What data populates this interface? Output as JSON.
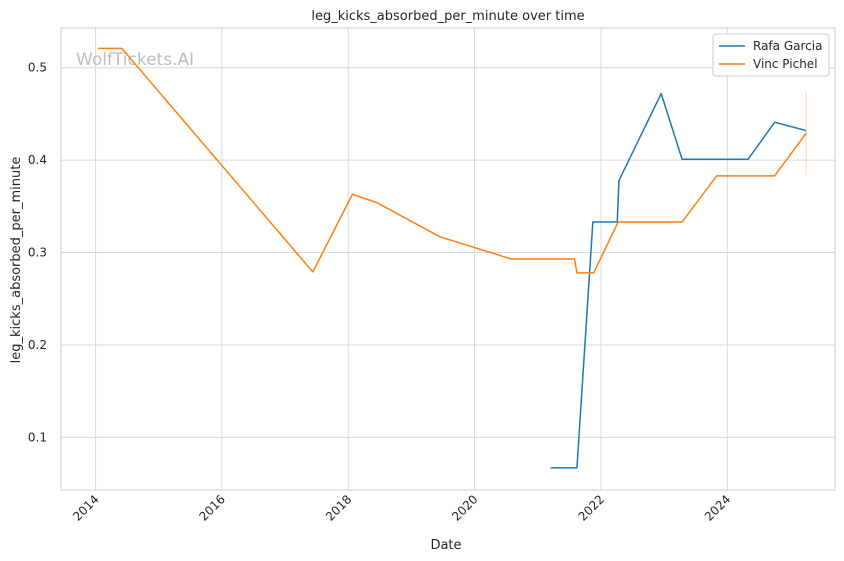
{
  "watermark": "WolfTickets.AI",
  "chart_data": {
    "type": "line",
    "title": "leg_kicks_absorbed_per_minute over time",
    "xlabel": "Date",
    "ylabel": "leg_kicks_absorbed_per_minute",
    "xlim": [
      "2013-06-15",
      "2025-09-15"
    ],
    "ylim": [
      0.043,
      0.543
    ],
    "x_ticks": [
      "2014",
      "2016",
      "2018",
      "2020",
      "2022",
      "2024"
    ],
    "y_ticks": [
      0.1,
      0.2,
      0.3,
      0.4,
      0.5
    ],
    "y_tick_labels": [
      "0.1",
      "0.2",
      "0.3",
      "0.4",
      "0.5"
    ],
    "grid": true,
    "legend_position": "top-right",
    "series": [
      {
        "name": "Rafa Garcia",
        "color": "#1f77b4",
        "points": [
          [
            "2021-03-15",
            0.067
          ],
          [
            "2021-08-15",
            0.067
          ],
          [
            "2021-11-15",
            0.333
          ],
          [
            "2022-04-05",
            0.333
          ],
          [
            "2022-04-15",
            0.378
          ],
          [
            "2022-12-15",
            0.472
          ],
          [
            "2023-04-15",
            0.401
          ],
          [
            "2024-05-01",
            0.401
          ],
          [
            "2024-10-01",
            0.441
          ],
          [
            "2025-04-01",
            0.432
          ]
        ]
      },
      {
        "name": "Vinc Pichel",
        "color": "#ff7f0e",
        "points": [
          [
            "2014-01-15",
            0.521
          ],
          [
            "2014-06-01",
            0.521
          ],
          [
            "2017-06-10",
            0.279
          ],
          [
            "2018-01-25",
            0.363
          ],
          [
            "2018-06-15",
            0.354
          ],
          [
            "2019-06-15",
            0.317
          ],
          [
            "2020-08-01",
            0.293
          ],
          [
            "2021-08-01",
            0.293
          ],
          [
            "2021-08-15",
            0.278
          ],
          [
            "2021-11-20",
            0.278
          ],
          [
            "2022-04-10",
            0.333
          ],
          [
            "2023-04-15",
            0.333
          ],
          [
            "2023-11-01",
            0.383
          ],
          [
            "2024-10-01",
            0.383
          ],
          [
            "2025-04-01",
            0.429
          ]
        ]
      }
    ],
    "error_bar": {
      "x": "2025-04-01",
      "low": 0.384,
      "high": 0.474,
      "color": "#ff7f0e"
    }
  }
}
